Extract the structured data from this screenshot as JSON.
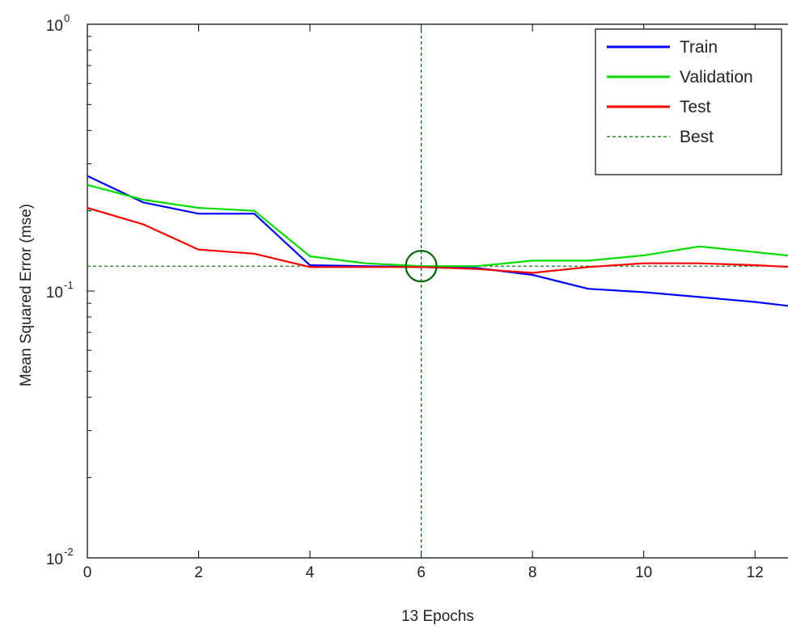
{
  "chart_data": {
    "type": "line",
    "title": "",
    "xlabel": "13 Epochs",
    "ylabel": "Mean Squared Error  (mse)",
    "yscale": "log",
    "xlim": [
      0,
      13
    ],
    "ylim": [
      0.01,
      1
    ],
    "xticks": [
      0,
      2,
      4,
      6,
      8,
      10,
      12
    ],
    "xtick_labels": [
      "0",
      "2",
      "4",
      "6",
      "8",
      "10",
      "12"
    ],
    "yticks": [
      {
        "value": 1,
        "base": "10",
        "exp": "0"
      },
      {
        "value": 0.1,
        "base": "10",
        "exp": "-1"
      },
      {
        "value": 0.01,
        "base": "10",
        "exp": "-2"
      }
    ],
    "grid": false,
    "legend_position": "top-right",
    "x": [
      0,
      1,
      2,
      3,
      4,
      5,
      6,
      7,
      8,
      9,
      10,
      11,
      12,
      13
    ],
    "series": [
      {
        "name": "Train",
        "color": "#0000ff",
        "dash": "solid",
        "values": [
          0.27,
          0.215,
          0.195,
          0.195,
          0.125,
          0.124,
          0.123,
          0.122,
          0.115,
          0.102,
          0.099,
          0.095,
          0.091,
          0.086
        ]
      },
      {
        "name": "Validation",
        "color": "#00dd00",
        "dash": "solid",
        "values": [
          0.25,
          0.22,
          0.205,
          0.2,
          0.135,
          0.127,
          0.124,
          0.124,
          0.13,
          0.13,
          0.136,
          0.147,
          0.14,
          0.133
        ]
      },
      {
        "name": "Test",
        "color": "#ff0000",
        "dash": "solid",
        "values": [
          0.205,
          0.178,
          0.143,
          0.138,
          0.123,
          0.123,
          0.123,
          0.121,
          0.117,
          0.123,
          0.127,
          0.127,
          0.125,
          0.122
        ]
      },
      {
        "name": "Best",
        "color": "#006600",
        "dash": "dashed",
        "best_epoch": 6,
        "best_value": 0.124
      }
    ]
  }
}
